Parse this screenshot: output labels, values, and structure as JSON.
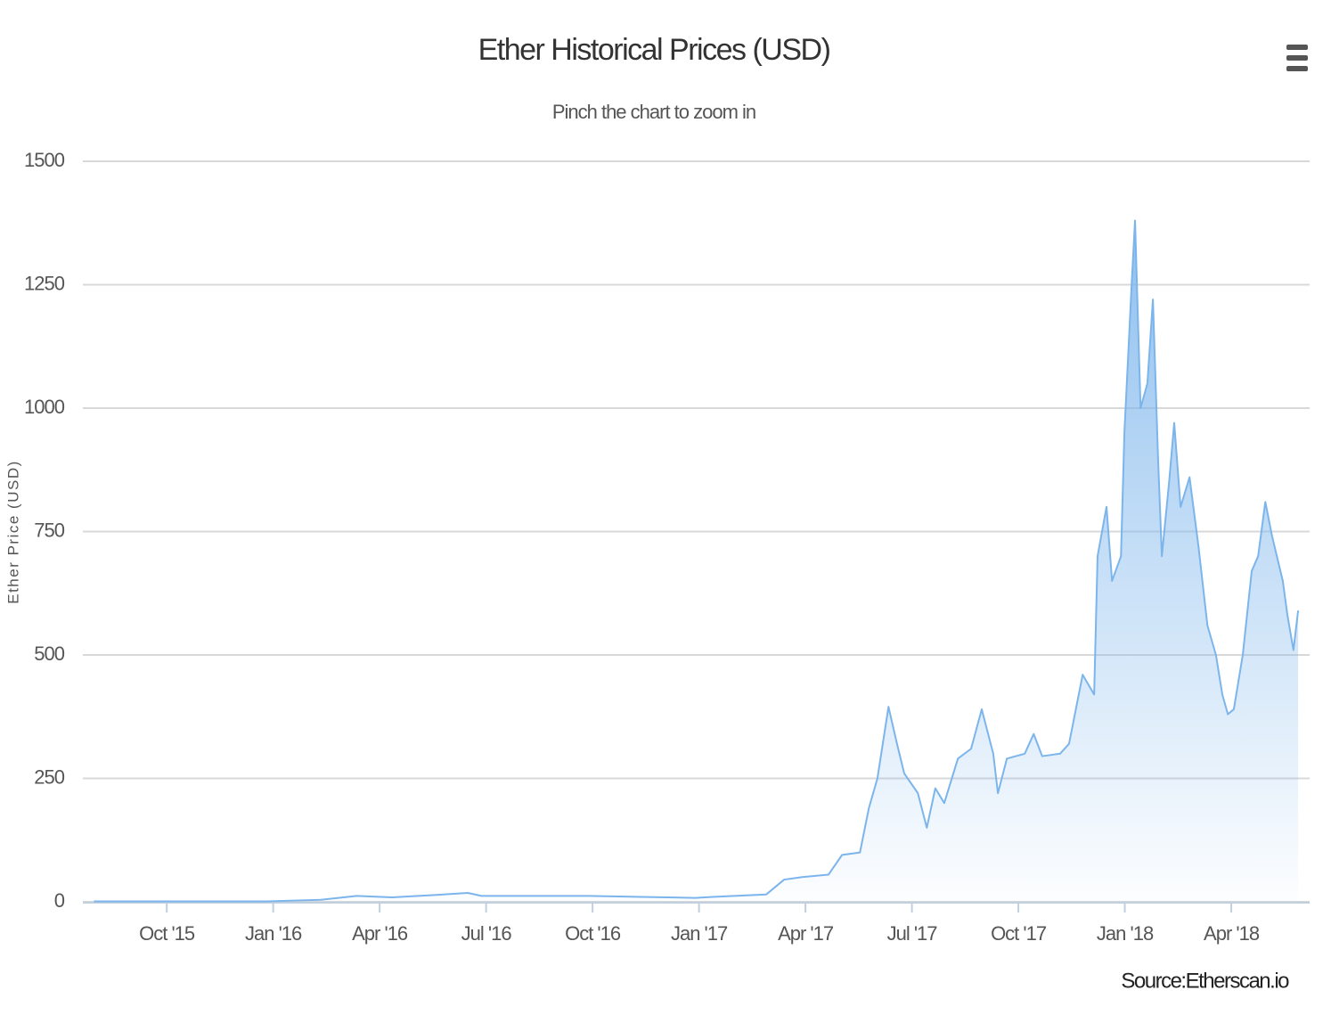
{
  "chart_data": {
    "type": "area",
    "title": "Ether Historical Prices (USD)",
    "subtitle": "Pinch the chart to zoom in",
    "y_label": "Ether Price (USD)",
    "credit": "Source:Etherscan.io",
    "color": "#7cb5ec",
    "grid": true,
    "xlim": [
      2015.553,
      2018.434
    ],
    "ylim": [
      0,
      1500
    ],
    "yticks": [
      0,
      250,
      500,
      750,
      1000,
      1250,
      1500
    ],
    "xticks": [
      {
        "value": 2015.75,
        "label": "Oct '15"
      },
      {
        "value": 2016.0,
        "label": "Jan '16"
      },
      {
        "value": 2016.25,
        "label": "Apr '16"
      },
      {
        "value": 2016.5,
        "label": "Jul '16"
      },
      {
        "value": 2016.75,
        "label": "Oct '16"
      },
      {
        "value": 2017.0,
        "label": "Jan '17"
      },
      {
        "value": 2017.25,
        "label": "Apr '17"
      },
      {
        "value": 2017.5,
        "label": "Jul '17"
      },
      {
        "value": 2017.75,
        "label": "Oct '17"
      },
      {
        "value": 2018.0,
        "label": "Jan '18"
      },
      {
        "value": 2018.25,
        "label": "Apr '18"
      }
    ],
    "x": [
      2015.579,
      2015.777,
      2015.986,
      2016.112,
      2016.196,
      2016.279,
      2016.384,
      2016.457,
      2016.489,
      2016.614,
      2016.74,
      2016.865,
      2016.991,
      2017.032,
      2017.158,
      2017.2,
      2017.242,
      2017.304,
      2017.336,
      2017.378,
      2017.399,
      2017.419,
      2017.445,
      2017.465,
      2017.482,
      2017.514,
      2017.535,
      2017.555,
      2017.576,
      2017.608,
      2017.639,
      2017.664,
      2017.691,
      2017.702,
      2017.723,
      2017.765,
      2017.786,
      2017.806,
      2017.848,
      2017.869,
      2017.901,
      2017.928,
      2017.936,
      2017.957,
      2017.97,
      2017.991,
      2017.999,
      2018.016,
      2018.024,
      2018.037,
      2018.053,
      2018.066,
      2018.078,
      2018.087,
      2018.104,
      2018.116,
      2018.131,
      2018.152,
      2018.173,
      2018.194,
      2018.214,
      2018.229,
      2018.242,
      2018.256,
      2018.277,
      2018.298,
      2018.313,
      2018.33,
      2018.346,
      2018.371,
      2018.382,
      2018.396,
      2018.407
    ],
    "values": [
      1,
      1,
      1,
      4,
      12,
      9,
      14,
      18,
      12,
      12,
      12,
      10,
      8,
      10,
      15,
      45,
      50,
      55,
      95,
      100,
      190,
      250,
      395,
      320,
      260,
      220,
      150,
      230,
      200,
      290,
      310,
      390,
      300,
      220,
      290,
      300,
      340,
      295,
      300,
      320,
      460,
      420,
      700,
      800,
      650,
      700,
      950,
      1250,
      1380,
      1000,
      1050,
      1220,
      900,
      700,
      850,
      970,
      800,
      860,
      720,
      560,
      500,
      420,
      380,
      390,
      500,
      670,
      700,
      810,
      740,
      650,
      580,
      510,
      590
    ]
  }
}
